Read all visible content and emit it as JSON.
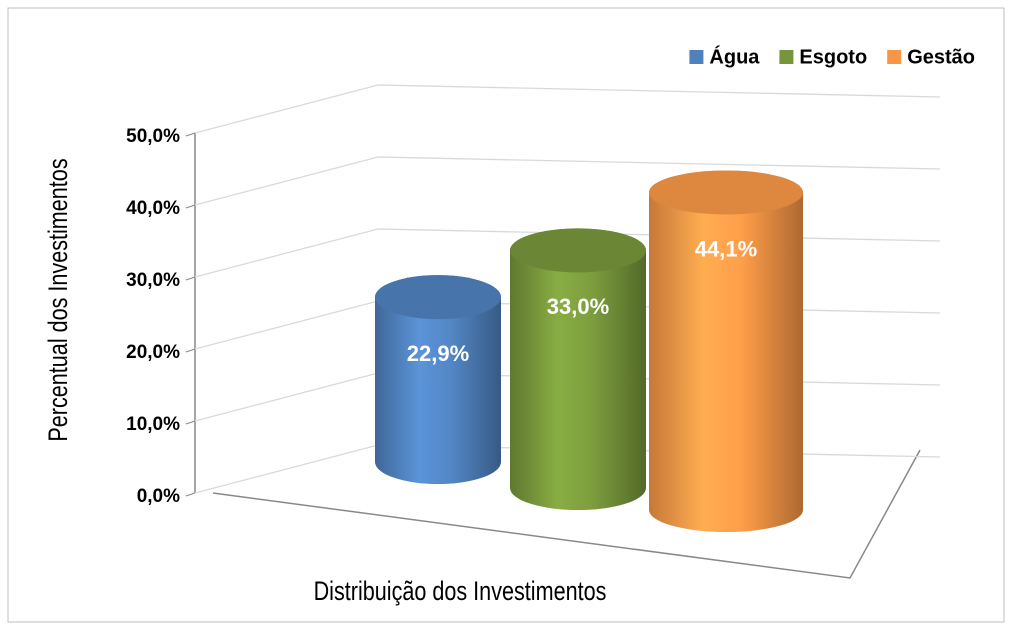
{
  "chart_data": {
    "type": "bar",
    "xlabel": "Distribuição dos Investimentos",
    "ylabel": "Percentual dos Investimentos",
    "categories": [
      null
    ],
    "series": [
      {
        "name": "Água",
        "color": "#4f81bd",
        "values": [
          22.9
        ],
        "value_labels": [
          "22,9%"
        ]
      },
      {
        "name": "Esgoto",
        "color": "#77963b",
        "values": [
          33.0
        ],
        "value_labels": [
          "33,0%"
        ]
      },
      {
        "name": "Gestão",
        "color": "#f79646",
        "values": [
          44.1
        ],
        "value_labels": [
          "44,1%"
        ]
      }
    ],
    "ylim": [
      0,
      50
    ],
    "yticks": [
      {
        "value": 0,
        "label": "0,0%"
      },
      {
        "value": 10,
        "label": "10,0%"
      },
      {
        "value": 20,
        "label": "20,0%"
      },
      {
        "value": 30,
        "label": "30,0%"
      },
      {
        "value": 40,
        "label": "40,0%"
      },
      {
        "value": 50,
        "label": "50,0%"
      }
    ],
    "grid": true,
    "legend": "top-right"
  }
}
